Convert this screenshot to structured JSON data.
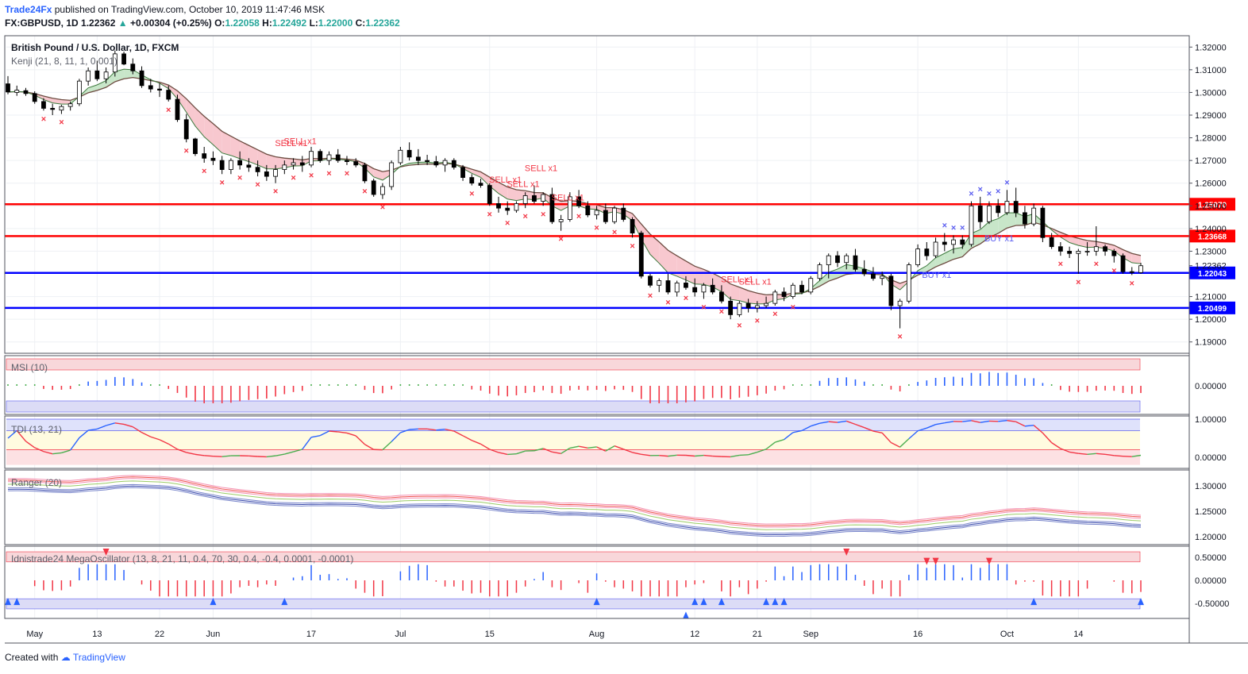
{
  "header": {
    "publisher": "Trade24Fx",
    "published_text": "published on TradingView.com, October 10, 2019 11:47:46 MSK",
    "symbol": "FX:GBPUSD, 1D",
    "last": "1.22362",
    "change_arrow": "▲",
    "change": "+0.00304 (+0.25%)",
    "o_label": "O:",
    "o_val": "1.22058",
    "h_label": "H:",
    "h_val": "1.22492",
    "l_label": "L:",
    "l_val": "1.22000",
    "c_label": "C:",
    "c_val": "1.22362"
  },
  "footer": {
    "created_with": "Created with",
    "brand": "TradingView",
    "logo_icon": "tradingview-logo-icon"
  },
  "colors": {
    "bull": "#ffffff",
    "bear": "#000000",
    "red_line": "#ff0000",
    "blue_line": "#0000ff",
    "kumo_bear": "#f8c8cf",
    "kumo_bull": "#c8e6c9",
    "sell": "#f23645",
    "buy": "#5b5ef0"
  },
  "chart_data": {
    "type": "candlestick",
    "title": "British Pound / U.S. Dollar, 1D, FXCM",
    "indicator_label": "Kenji (21, 8, 11, 1, 0.001)",
    "price_axis": {
      "ylim": [
        1.185,
        1.325
      ],
      "ticks": [
        "1.32000",
        "1.31000",
        "1.30000",
        "1.29000",
        "1.28000",
        "1.27000",
        "1.26000",
        "1.25000",
        "1.24000",
        "1.23000",
        "1.22362",
        "1.21000",
        "1.20000",
        "1.19000"
      ]
    },
    "date_ticks": [
      "May",
      "13",
      "22",
      "Jun",
      "17",
      "Jul",
      "15",
      "Aug",
      "12",
      "21",
      "Sep",
      "16",
      "Oct",
      "14"
    ],
    "horizontal_levels": [
      {
        "value": 1.2507,
        "label": "1.25070",
        "color": "#ff0000"
      },
      {
        "value": 1.23668,
        "label": "1.23668",
        "color": "#ff0000"
      },
      {
        "value": 1.22043,
        "label": "1.22043",
        "color": "#0000ff"
      },
      {
        "value": 1.20499,
        "label": "1.20499",
        "color": "#0000ff"
      }
    ],
    "candles": [
      [
        1.3038,
        1.3072,
        1.2992,
        1.3002
      ],
      [
        1.3,
        1.303,
        1.2985,
        1.301
      ],
      [
        1.3008,
        1.302,
        1.2985,
        1.2995
      ],
      [
        1.2995,
        1.3005,
        1.295,
        1.296
      ],
      [
        1.296,
        1.2975,
        1.292,
        1.293
      ],
      [
        1.293,
        1.295,
        1.29,
        1.2925
      ],
      [
        1.2922,
        1.2945,
        1.2905,
        1.2938
      ],
      [
        1.2938,
        1.296,
        1.292,
        1.295
      ],
      [
        1.295,
        1.306,
        1.294,
        1.305
      ],
      [
        1.305,
        1.311,
        1.303,
        1.3095
      ],
      [
        1.3095,
        1.314,
        1.305,
        1.306
      ],
      [
        1.306,
        1.311,
        1.304,
        1.309
      ],
      [
        1.309,
        1.3185,
        1.307,
        1.317
      ],
      [
        1.317,
        1.318,
        1.312,
        1.3125
      ],
      [
        1.3125,
        1.315,
        1.308,
        1.3095
      ],
      [
        1.3095,
        1.3115,
        1.302,
        1.303
      ],
      [
        1.303,
        1.306,
        1.3,
        1.3015
      ],
      [
        1.3015,
        1.304,
        1.298,
        1.301
      ],
      [
        1.301,
        1.303,
        1.296,
        1.297
      ],
      [
        1.297,
        1.299,
        1.287,
        1.288
      ],
      [
        1.288,
        1.2905,
        1.278,
        1.2795
      ],
      [
        1.2795,
        1.28,
        1.272,
        1.273
      ],
      [
        1.273,
        1.276,
        1.269,
        1.271
      ],
      [
        1.271,
        1.274,
        1.268,
        1.27
      ],
      [
        1.27,
        1.272,
        1.264,
        1.266
      ],
      [
        1.266,
        1.271,
        1.264,
        1.27
      ],
      [
        1.27,
        1.274,
        1.266,
        1.268
      ],
      [
        1.268,
        1.271,
        1.265,
        1.267
      ],
      [
        1.267,
        1.27,
        1.263,
        1.265
      ],
      [
        1.265,
        1.268,
        1.261,
        1.263
      ],
      [
        1.263,
        1.268,
        1.26,
        1.266
      ],
      [
        1.266,
        1.27,
        1.264,
        1.268
      ],
      [
        1.268,
        1.271,
        1.266,
        1.269
      ],
      [
        1.269,
        1.272,
        1.265,
        1.268
      ],
      [
        1.268,
        1.276,
        1.267,
        1.274
      ],
      [
        1.274,
        1.275,
        1.269,
        1.27
      ],
      [
        1.27,
        1.274,
        1.268,
        1.2725
      ],
      [
        1.2725,
        1.275,
        1.269,
        1.27
      ],
      [
        1.27,
        1.272,
        1.268,
        1.2695
      ],
      [
        1.2695,
        1.271,
        1.267,
        1.268
      ],
      [
        1.268,
        1.269,
        1.26,
        1.261
      ],
      [
        1.261,
        1.262,
        1.254,
        1.255
      ],
      [
        1.255,
        1.26,
        1.253,
        1.2585
      ],
      [
        1.2585,
        1.27,
        1.257,
        1.269
      ],
      [
        1.269,
        1.276,
        1.268,
        1.2745
      ],
      [
        1.2745,
        1.278,
        1.27,
        1.2715
      ],
      [
        1.2715,
        1.275,
        1.268,
        1.27
      ],
      [
        1.27,
        1.2725,
        1.268,
        1.2695
      ],
      [
        1.2695,
        1.272,
        1.267,
        1.268
      ],
      [
        1.268,
        1.271,
        1.265,
        1.27
      ],
      [
        1.27,
        1.271,
        1.266,
        1.267
      ],
      [
        1.267,
        1.268,
        1.261,
        1.2625
      ],
      [
        1.2625,
        1.264,
        1.259,
        1.26
      ],
      [
        1.26,
        1.262,
        1.258,
        1.259
      ],
      [
        1.259,
        1.26,
        1.25,
        1.251
      ],
      [
        1.251,
        1.254,
        1.247,
        1.249
      ],
      [
        1.249,
        1.252,
        1.246,
        1.248
      ],
      [
        1.248,
        1.252,
        1.247,
        1.251
      ],
      [
        1.251,
        1.256,
        1.249,
        1.2545
      ],
      [
        1.2545,
        1.259,
        1.251,
        1.252
      ],
      [
        1.252,
        1.256,
        1.25,
        1.255
      ],
      [
        1.255,
        1.258,
        1.242,
        1.243
      ],
      [
        1.243,
        1.246,
        1.239,
        1.244
      ],
      [
        1.244,
        1.256,
        1.243,
        1.254
      ],
      [
        1.254,
        1.257,
        1.249,
        1.25
      ],
      [
        1.25,
        1.252,
        1.245,
        1.246
      ],
      [
        1.246,
        1.25,
        1.244,
        1.248
      ],
      [
        1.248,
        1.251,
        1.242,
        1.243
      ],
      [
        1.243,
        1.25,
        1.242,
        1.249
      ],
      [
        1.249,
        1.251,
        1.243,
        1.244
      ],
      [
        1.244,
        1.245,
        1.236,
        1.238
      ],
      [
        1.238,
        1.239,
        1.218,
        1.219
      ],
      [
        1.219,
        1.22,
        1.214,
        1.215
      ],
      [
        1.215,
        1.218,
        1.212,
        1.217
      ],
      [
        1.217,
        1.22,
        1.211,
        1.212
      ],
      [
        1.212,
        1.217,
        1.21,
        1.216
      ],
      [
        1.216,
        1.219,
        1.213,
        1.214
      ],
      [
        1.214,
        1.218,
        1.21,
        1.212
      ],
      [
        1.212,
        1.216,
        1.209,
        1.215
      ],
      [
        1.215,
        1.218,
        1.211,
        1.212
      ],
      [
        1.212,
        1.215,
        1.207,
        1.208
      ],
      [
        1.208,
        1.21,
        1.2,
        1.202
      ],
      [
        1.202,
        1.208,
        1.201,
        1.207
      ],
      [
        1.207,
        1.209,
        1.203,
        1.205
      ],
      [
        1.205,
        1.208,
        1.203,
        1.206
      ],
      [
        1.206,
        1.21,
        1.205,
        1.207
      ],
      [
        1.207,
        1.213,
        1.206,
        1.212
      ],
      [
        1.212,
        1.214,
        1.208,
        1.21
      ],
      [
        1.21,
        1.216,
        1.209,
        1.215
      ],
      [
        1.215,
        1.217,
        1.211,
        1.212
      ],
      [
        1.212,
        1.219,
        1.211,
        1.218
      ],
      [
        1.218,
        1.225,
        1.217,
        1.224
      ],
      [
        1.224,
        1.229,
        1.218,
        1.228
      ],
      [
        1.228,
        1.23,
        1.223,
        1.225
      ],
      [
        1.225,
        1.229,
        1.222,
        1.228
      ],
      [
        1.228,
        1.231,
        1.221,
        1.222
      ],
      [
        1.222,
        1.226,
        1.219,
        1.22
      ],
      [
        1.22,
        1.223,
        1.217,
        1.218
      ],
      [
        1.218,
        1.221,
        1.215,
        1.219
      ],
      [
        1.219,
        1.22,
        1.204,
        1.206
      ],
      [
        1.206,
        1.209,
        1.196,
        1.208
      ],
      [
        1.208,
        1.225,
        1.207,
        1.224
      ],
      [
        1.224,
        1.233,
        1.223,
        1.231
      ],
      [
        1.231,
        1.234,
        1.226,
        1.228
      ],
      [
        1.228,
        1.236,
        1.227,
        1.234
      ],
      [
        1.234,
        1.238,
        1.23,
        1.233
      ],
      [
        1.233,
        1.237,
        1.229,
        1.235
      ],
      [
        1.235,
        1.237,
        1.231,
        1.233
      ],
      [
        1.233,
        1.252,
        1.232,
        1.25
      ],
      [
        1.25,
        1.254,
        1.24,
        1.243
      ],
      [
        1.243,
        1.252,
        1.242,
        1.25
      ],
      [
        1.25,
        1.253,
        1.245,
        1.247
      ],
      [
        1.247,
        1.257,
        1.246,
        1.252
      ],
      [
        1.252,
        1.258,
        1.245,
        1.247
      ],
      [
        1.247,
        1.25,
        1.24,
        1.242
      ],
      [
        1.242,
        1.251,
        1.241,
        1.249
      ],
      [
        1.249,
        1.25,
        1.234,
        1.236
      ],
      [
        1.236,
        1.238,
        1.231,
        1.232
      ],
      [
        1.232,
        1.234,
        1.228,
        1.23
      ],
      [
        1.23,
        1.232,
        1.227,
        1.229
      ],
      [
        1.229,
        1.231,
        1.22,
        1.23
      ],
      [
        1.23,
        1.234,
        1.228,
        1.23
      ],
      [
        1.23,
        1.241,
        1.228,
        1.232
      ],
      [
        1.232,
        1.233,
        1.228,
        1.23
      ],
      [
        1.23,
        1.231,
        1.225,
        1.228
      ],
      [
        1.228,
        1.229,
        1.22,
        1.221
      ],
      [
        1.221,
        1.223,
        1.2195,
        1.2206
      ],
      [
        1.2206,
        1.2249,
        1.22,
        1.2236
      ]
    ],
    "panes": {
      "msi_label": "MSI (10)",
      "msi_ticks": [
        "0.00000"
      ],
      "tdi_label": "TDI (13, 21)",
      "tdi_ticks": [
        "1.00000",
        "0.00000"
      ],
      "ranger_label": "Ranger (20)",
      "ranger_ticks": [
        "1.30000",
        "1.25000",
        "1.20000"
      ],
      "mega_label": "Idnistrade24 MegaOscillator (13, 8, 21, 11, 0.4, 70, 30, 0.4, -0.4, 0.0001, -0.0001)",
      "mega_ticks": [
        "0.50000",
        "0.00000",
        "-0.50000"
      ]
    },
    "signals": {
      "sell_text": "SELL x1",
      "buy_text": "BUY x1",
      "sell_at": [
        31,
        32,
        55,
        57,
        59,
        62,
        81,
        83
      ],
      "buy_at": [
        103,
        110
      ]
    }
  }
}
